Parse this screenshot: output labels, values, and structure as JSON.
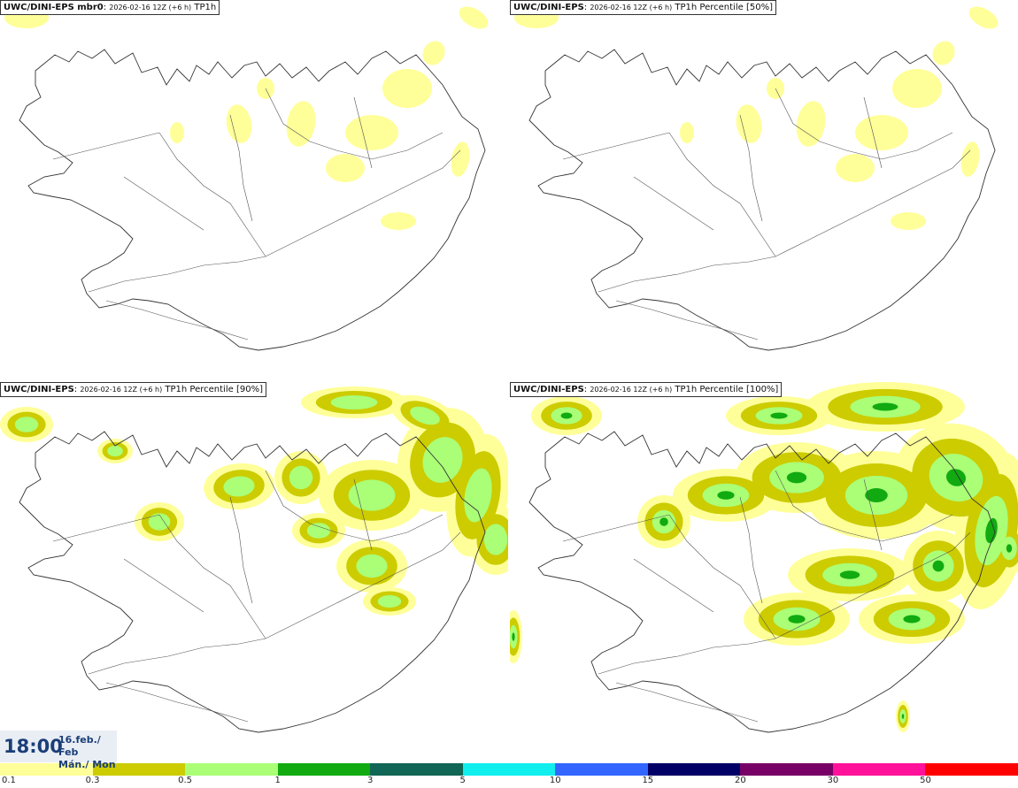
{
  "panels": [
    {
      "model": "UWC/DINI-EPS",
      "member": " mbr0",
      "run": "2026-02-16 12Z (+6 h)",
      "field": "TP1h",
      "intensity": 1
    },
    {
      "model": "UWC/DINI-EPS",
      "member": "",
      "run": "2026-02-16 12Z (+6 h)",
      "field": "TP1h Percentile [50%]",
      "intensity": 1
    },
    {
      "model": "UWC/DINI-EPS",
      "member": "",
      "run": "2026-02-16 12Z (+6 h)",
      "field": "TP1h Percentile [90%]",
      "intensity": 3
    },
    {
      "model": "UWC/DINI-EPS",
      "member": "",
      "run": "2026-02-16 12Z (+6 h)",
      "field": "TP1h Percentile [100%]",
      "intensity": 4
    }
  ],
  "valid_time": {
    "time": "18:00",
    "date_line1": "16.feb./ Feb",
    "date_line2": "Mán./ Mon"
  },
  "colorbar": {
    "colors": [
      "#ffff99",
      "#cccc00",
      "#aaff77",
      "#11aa11",
      "#116655",
      "#11eeee",
      "#3366ff",
      "#000066",
      "#770066",
      "#ff1199",
      "#ff0000"
    ],
    "labels": [
      "0.1",
      "0.3",
      "0.5",
      "1",
      "3",
      "5",
      "10",
      "15",
      "20",
      "30",
      "50"
    ]
  }
}
